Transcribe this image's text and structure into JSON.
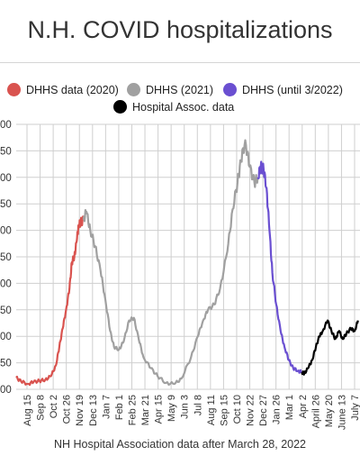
{
  "header": {
    "title": "N.H. COVID hospitalizations"
  },
  "legend": [
    {
      "label": "DHHS data (2020)",
      "color": "#d9534f"
    },
    {
      "label": "DHHS (2021)",
      "color": "#a0a0a0"
    },
    {
      "label": "DHHS (until 3/2022)",
      "color": "#6a4fd1"
    },
    {
      "label": "Hospital Assoc. data",
      "color": "#000000"
    }
  ],
  "footer": {
    "note": "NH Hospital Association data after March 28, 2022"
  },
  "chart_data": {
    "type": "line",
    "title": "N.H. COVID hospitalizations",
    "xlabel": "",
    "ylabel": "",
    "y_tick_labels": [
      "00",
      "50",
      "00",
      "50",
      "00",
      "50",
      "00",
      "50",
      "00",
      "50",
      "00"
    ],
    "x_tick_labels": [
      "Aug 15",
      "Sep 8",
      "Oct 2",
      "Oct 26",
      "Nov 19",
      "Dec 13",
      "Jan 7",
      "Feb 1",
      "Feb 25",
      "Mar 21",
      "Apr 15",
      "May 9",
      "Jun 3",
      "Jul 8",
      "Aug 11",
      "Sep 15",
      "Oct 10",
      "Nov 22",
      "Dec 27",
      "Jan 26",
      "Mar 1",
      "Apr 2",
      "April 26",
      "May 20",
      "June 13",
      "July 7"
    ],
    "ylim": [
      0,
      500
    ],
    "grid": true,
    "series": [
      {
        "name": "DHHS data (2020)",
        "color": "#d9534f",
        "x": [
          "2020-08-15",
          "2020-08-25",
          "2020-09-08",
          "2020-09-20",
          "2020-10-02",
          "2020-10-14",
          "2020-10-26",
          "2020-11-05",
          "2020-11-12",
          "2020-11-19",
          "2020-11-26",
          "2020-12-03",
          "2020-12-08",
          "2020-12-13",
          "2020-12-18",
          "2020-12-22",
          "2020-12-26",
          "2021-01-01"
        ],
        "y": [
          22,
          15,
          10,
          14,
          16,
          18,
          25,
          45,
          80,
          115,
          150,
          190,
          240,
          250,
          280,
          310,
          315,
          320
        ]
      },
      {
        "name": "DHHS (2021)",
        "color": "#a0a0a0",
        "x": [
          "2021-01-01",
          "2021-01-07",
          "2021-01-15",
          "2021-01-25",
          "2021-02-05",
          "2021-02-15",
          "2021-02-25",
          "2021-03-05",
          "2021-03-15",
          "2021-03-25",
          "2021-04-05",
          "2021-04-15",
          "2021-04-25",
          "2021-05-05",
          "2021-05-20",
          "2021-06-03",
          "2021-06-20",
          "2021-07-08",
          "2021-07-22",
          "2021-08-11",
          "2021-08-25",
          "2021-09-05",
          "2021-09-15",
          "2021-09-28",
          "2021-10-10",
          "2021-10-25",
          "2021-11-05",
          "2021-11-15",
          "2021-11-22",
          "2021-12-01",
          "2021-12-10",
          "2021-12-20",
          "2021-12-27"
        ],
        "y": [
          320,
          335,
          300,
          270,
          225,
          170,
          110,
          80,
          75,
          90,
          130,
          135,
          95,
          60,
          40,
          25,
          12,
          10,
          20,
          60,
          100,
          130,
          150,
          160,
          190,
          260,
          340,
          390,
          430,
          470,
          420,
          390,
          400
        ]
      },
      {
        "name": "DHHS (until 3/2022)",
        "color": "#6a4fd1",
        "x": [
          "2021-12-27",
          "2022-01-02",
          "2022-01-08",
          "2022-01-14",
          "2022-01-20",
          "2022-01-26",
          "2022-02-03",
          "2022-02-12",
          "2022-02-20",
          "2022-03-01",
          "2022-03-10",
          "2022-03-20",
          "2022-03-28"
        ],
        "y": [
          400,
          420,
          415,
          380,
          300,
          220,
          160,
          110,
          80,
          55,
          40,
          35,
          32
        ]
      },
      {
        "name": "Hospital Assoc. data",
        "color": "#000000",
        "x": [
          "2022-03-28",
          "2022-04-02",
          "2022-04-10",
          "2022-04-18",
          "2022-04-26",
          "2022-05-03",
          "2022-05-10",
          "2022-05-20",
          "2022-05-28",
          "2022-06-05",
          "2022-06-13",
          "2022-06-20",
          "2022-06-28",
          "2022-07-07",
          "2022-07-15",
          "2022-07-22"
        ],
        "y": [
          32,
          30,
          40,
          55,
          80,
          100,
          110,
          130,
          110,
          95,
          110,
          95,
          105,
          115,
          110,
          130
        ]
      }
    ]
  }
}
